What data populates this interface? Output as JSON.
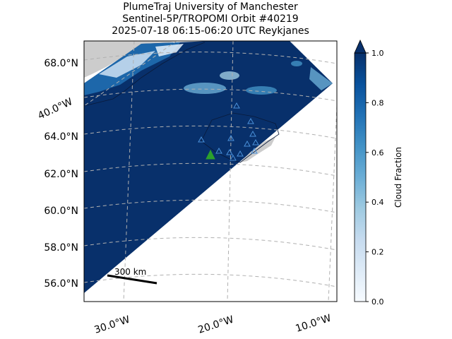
{
  "title": {
    "line1": "PlumeTraj    University of Manchester",
    "line2": "Sentinel-5P/TROPOMI Orbit #40219",
    "line3": "2025-07-18   06:15-06:20 UTC   Reykjanes"
  },
  "map": {
    "lat_labels": [
      "68.0°N",
      "64.0°N",
      "62.0°N",
      "60.0°N",
      "58.0°N",
      "56.0°N"
    ],
    "lon_tilted_label": "40.0°W",
    "lon_labels": [
      "30.0°W",
      "20.0°W",
      "10.0°W"
    ],
    "scale_bar_label": "300 km",
    "colors": {
      "cloud_dark": "#08306b",
      "land": "#cccccc",
      "grid": "#b0b0b0",
      "volcano_marker": "#2ca02c",
      "vent_markers": "#4a90d9"
    }
  },
  "colorbar": {
    "label": "Cloud Fraction",
    "ticks": [
      "1.0",
      "0.8",
      "0.6",
      "0.4",
      "0.2",
      "0.0"
    ],
    "min": 0.0,
    "max": 1.0,
    "colormap": "Blues",
    "extend": "max"
  }
}
